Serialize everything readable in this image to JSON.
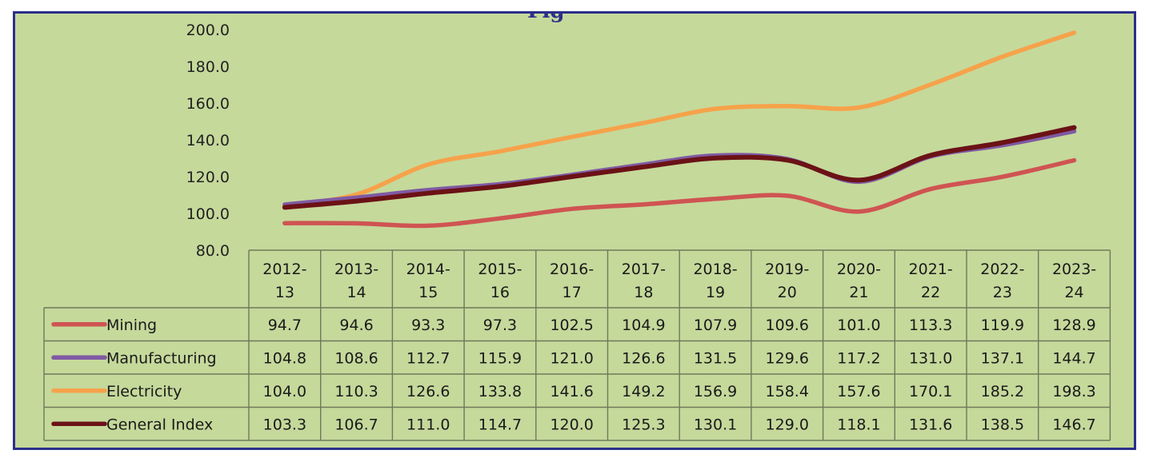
{
  "title": "Fig",
  "chart_data": {
    "type": "line",
    "title": "",
    "xlabel": "",
    "ylabel": "",
    "ylim": [
      80,
      200
    ],
    "y_ticks": [
      "200.0",
      "180.0",
      "160.0",
      "140.0",
      "120.0",
      "100.0",
      "80.0"
    ],
    "grid": false,
    "legend": "data-table",
    "categories": [
      [
        "2012-",
        "13"
      ],
      [
        "2013-",
        "14"
      ],
      [
        "2014-",
        "15"
      ],
      [
        "2015-",
        "16"
      ],
      [
        "2016-",
        "17"
      ],
      [
        "2017-",
        "18"
      ],
      [
        "2018-",
        "19"
      ],
      [
        "2019-",
        "20"
      ],
      [
        "2020-",
        "21"
      ],
      [
        "2021-",
        "22"
      ],
      [
        "2022-",
        "23"
      ],
      [
        "2023-",
        "24"
      ]
    ],
    "series": [
      {
        "name": "Mining",
        "color": "#cf5452",
        "values": [
          "94.7",
          "94.6",
          "93.3",
          "97.3",
          "102.5",
          "104.9",
          "107.9",
          "109.6",
          "101.0",
          "113.3",
          "119.9",
          "128.9"
        ]
      },
      {
        "name": "Manufacturing",
        "color": "#7f5aa3",
        "values": [
          "104.8",
          "108.6",
          "112.7",
          "115.9",
          "121.0",
          "126.6",
          "131.5",
          "129.6",
          "117.2",
          "131.0",
          "137.1",
          "144.7"
        ]
      },
      {
        "name": "Electricity",
        "color": "#f6a24a",
        "values": [
          "104.0",
          "110.3",
          "126.6",
          "133.8",
          "141.6",
          "149.2",
          "156.9",
          "158.4",
          "157.6",
          "170.1",
          "185.2",
          "198.3"
        ]
      },
      {
        "name": "General Index",
        "color": "#6b1216",
        "values": [
          "103.3",
          "106.7",
          "111.0",
          "114.7",
          "120.0",
          "125.3",
          "130.1",
          "129.0",
          "118.1",
          "131.6",
          "138.5",
          "146.7"
        ]
      }
    ]
  }
}
